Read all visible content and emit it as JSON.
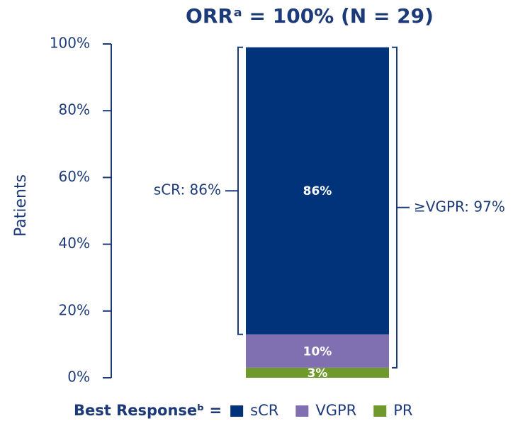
{
  "chart_data": {
    "type": "stacked_bar",
    "title": "ORRᵃ = 100% (N = 29)",
    "ylabel": "Patients",
    "categories": [
      null
    ],
    "series": [
      {
        "name": "sCR",
        "color": "#00337a",
        "values": [
          86
        ],
        "value_labels": [
          "86%"
        ]
      },
      {
        "name": "VGPR",
        "color": "#8070b2",
        "values": [
          10
        ],
        "value_labels": [
          "10%"
        ]
      },
      {
        "name": "PR",
        "color": "#6f9a2b",
        "values": [
          3
        ],
        "value_labels": [
          "3%"
        ]
      }
    ],
    "legend_title": "Best Responseᵇ =",
    "annotations": [
      "sCR: 86%",
      "≥VGPR: 97%"
    ],
    "ylim": [
      0,
      100
    ],
    "yticks": [
      {
        "value": 0,
        "label": "0%"
      },
      {
        "value": 20,
        "label": "20%"
      },
      {
        "value": 40,
        "label": "40%"
      },
      {
        "value": 60,
        "label": "60%"
      },
      {
        "value": 80,
        "label": "80%"
      },
      {
        "value": 100,
        "label": "100%"
      }
    ]
  }
}
